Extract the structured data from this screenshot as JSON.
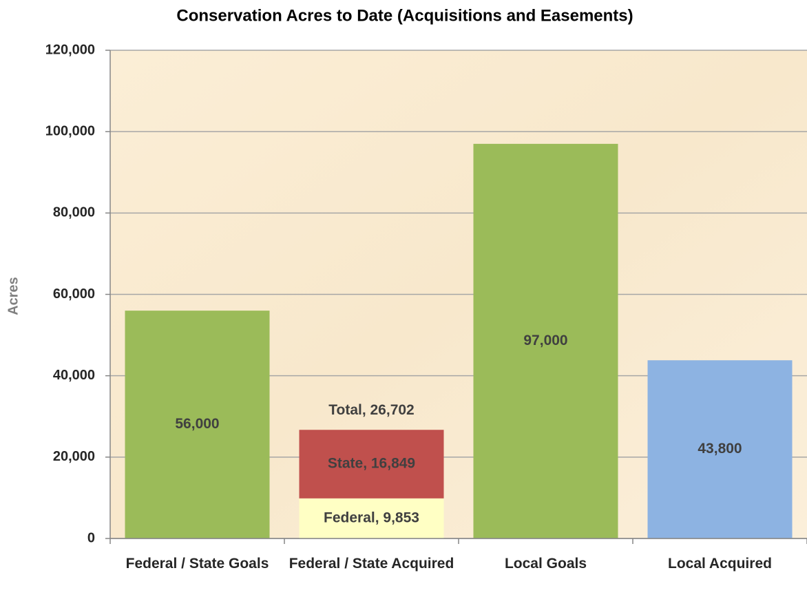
{
  "chart_data": {
    "type": "stacked_bar",
    "title": "Conservation Acres to Date (Acquisitions and Easements)",
    "ylabel": "Acres",
    "categories": [
      "Federal / State Goals",
      "Federal / State Acquired",
      "Local Goals",
      "Local Acquired"
    ],
    "series": [
      {
        "color": "#9bbb59",
        "values": [
          56000,
          null,
          97000,
          null
        ],
        "value_labels": [
          "56,000",
          null,
          "97,000",
          null
        ]
      },
      {
        "name": "Federal",
        "color": "#ffffc4",
        "values": [
          null,
          9853,
          null,
          null
        ],
        "value_labels": [
          null,
          "Federal, 9,853",
          null,
          null
        ]
      },
      {
        "name": "State",
        "color": "#c0504d",
        "values": [
          null,
          16849,
          null,
          null
        ],
        "value_labels": [
          null,
          "State, 16,849",
          null,
          null
        ]
      },
      {
        "color": "#8db3e2",
        "values": [
          null,
          null,
          null,
          43800
        ],
        "value_labels": [
          null,
          null,
          null,
          "43,800"
        ]
      }
    ],
    "totals": {
      "values": [
        null,
        26702,
        null,
        null
      ],
      "value_labels": [
        null,
        "Total, 26,702",
        null,
        null
      ]
    },
    "ylim": [
      0,
      120000
    ],
    "yticks": [
      0,
      {
        "value": 20000,
        "label": "20,000"
      },
      {
        "value": 40000,
        "label": "40,000"
      },
      {
        "value": 60000,
        "label": "60,000"
      },
      {
        "value": 80000,
        "label": "80,000"
      },
      {
        "value": 100000,
        "label": "100,000"
      },
      {
        "value": 120000,
        "label": "120,000"
      }
    ],
    "grid": true
  }
}
